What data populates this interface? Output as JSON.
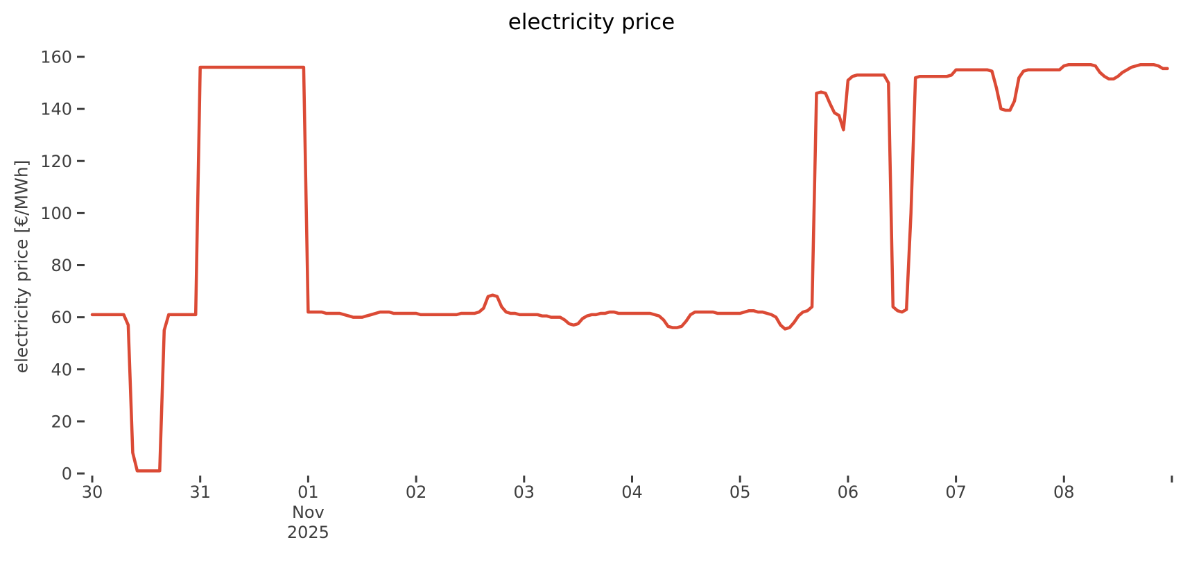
{
  "chart_data": {
    "type": "line",
    "title": "electricity price",
    "ylabel": "electricity price [€/MWh]",
    "xlabel": "",
    "x_start": "2025-10-30 00:00",
    "hours_per_point": 1,
    "ylim": [
      0,
      160
    ],
    "y_ticks": [
      0,
      20,
      40,
      60,
      80,
      100,
      120,
      140,
      160
    ],
    "x_ticks": [
      {
        "hour": 0,
        "label": "30"
      },
      {
        "hour": 24,
        "label": "31"
      },
      {
        "hour": 48,
        "label": "01"
      },
      {
        "hour": 72,
        "label": "02"
      },
      {
        "hour": 96,
        "label": "03"
      },
      {
        "hour": 120,
        "label": "04"
      },
      {
        "hour": 144,
        "label": "05"
      },
      {
        "hour": 168,
        "label": "06"
      },
      {
        "hour": 192,
        "label": "07"
      },
      {
        "hour": 216,
        "label": "08"
      },
      {
        "hour": 240,
        "label": ""
      }
    ],
    "x_sub_labels": {
      "hour": 48,
      "lines": [
        "Nov",
        "2025"
      ]
    },
    "grid": false,
    "legend": "none",
    "line_color": "#db4a35",
    "axis_text_color": "#3e3e3e",
    "series": [
      {
        "name": "electricity price",
        "unit": "€/MWh",
        "values": [
          61,
          61,
          61,
          61,
          61,
          61,
          61,
          61,
          57,
          8,
          1,
          1,
          1,
          1,
          1,
          1,
          55,
          61,
          61,
          61,
          61,
          61,
          61,
          61,
          156,
          156,
          156,
          156,
          156,
          156,
          156,
          156,
          156,
          156,
          156,
          156,
          156,
          156,
          156,
          156,
          156,
          156,
          156,
          156,
          156,
          156,
          156,
          156,
          62,
          62,
          62,
          62,
          61.5,
          61.5,
          61.5,
          61.5,
          61,
          60.5,
          60,
          60,
          60,
          60.5,
          61,
          61.5,
          62,
          62,
          62,
          61.5,
          61.5,
          61.5,
          61.5,
          61.5,
          61.5,
          61,
          61,
          61,
          61,
          61,
          61,
          61,
          61,
          61,
          61.5,
          61.5,
          61.5,
          61.5,
          62,
          63.5,
          68,
          68.5,
          68,
          64,
          62,
          61.5,
          61.5,
          61,
          61,
          61,
          61,
          61,
          60.5,
          60.5,
          60,
          60,
          60,
          59,
          57.5,
          57,
          57.5,
          59.5,
          60.5,
          61,
          61,
          61.5,
          61.5,
          62,
          62,
          61.5,
          61.5,
          61.5,
          61.5,
          61.5,
          61.5,
          61.5,
          61.5,
          61,
          60.5,
          59,
          56.5,
          56,
          56,
          56.5,
          58.5,
          61,
          62,
          62,
          62,
          62,
          62,
          61.5,
          61.5,
          61.5,
          61.5,
          61.5,
          61.5,
          62,
          62.5,
          62.5,
          62,
          62,
          61.5,
          61,
          60,
          57,
          55.5,
          56,
          58,
          60.5,
          62,
          62.5,
          64,
          146,
          146.5,
          146,
          142,
          138.5,
          137.5,
          132,
          151,
          152.5,
          153,
          153,
          153,
          153,
          153,
          153,
          153,
          150,
          64,
          62.5,
          62,
          63,
          100,
          152,
          152.5,
          152.5,
          152.5,
          152.5,
          152.5,
          152.5,
          152.5,
          153,
          155,
          155,
          155,
          155,
          155,
          155,
          155,
          155,
          154.5,
          148,
          140,
          139.5,
          139.5,
          143,
          152,
          154.5,
          155,
          155,
          155,
          155,
          155,
          155,
          155,
          155,
          156.5,
          157,
          157,
          157,
          157,
          157,
          157,
          156.5,
          154,
          152.5,
          151.5,
          151.5,
          152.5,
          154,
          155,
          156,
          156.5,
          157,
          157,
          157,
          157,
          156.5,
          155.5,
          155.5
        ]
      }
    ]
  }
}
